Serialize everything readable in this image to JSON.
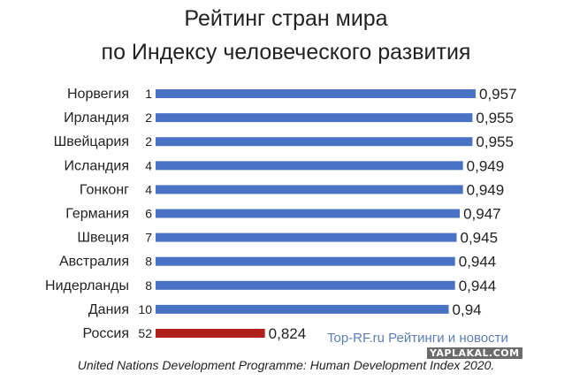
{
  "title_line1": "Рейтинг стран мира",
  "title_line2": "по Индексу человеческого развития",
  "source": "United Nations Development Programme: Human Development Index 2020.",
  "watermark": "Top-RF.ru Рейтинги и новости",
  "stamp": "YAPLAKAL.COM",
  "colors": {
    "bar": "#4a72c4",
    "highlight": "#b01e1e",
    "text": "#222222"
  },
  "chart_data": {
    "type": "bar",
    "orientation": "horizontal",
    "categories": [
      "Норвегия",
      "Ирландия",
      "Швейцария",
      "Исландия",
      "Гонконг",
      "Германия",
      "Швеция",
      "Австралия",
      "Нидерланды",
      "Дания",
      "Россия"
    ],
    "ranks": [
      "1",
      "2",
      "2",
      "4",
      "4",
      "6",
      "7",
      "8",
      "8",
      "10",
      "52"
    ],
    "values": [
      0.957,
      0.955,
      0.955,
      0.949,
      0.949,
      0.947,
      0.945,
      0.944,
      0.944,
      0.94,
      0.824
    ],
    "value_labels": [
      "0,957",
      "0,955",
      "0,955",
      "0,949",
      "0,949",
      "0,947",
      "0,945",
      "0,944",
      "0,944",
      "0,94",
      "0,824"
    ],
    "highlight_index": 10,
    "xlim": [
      0.755,
      0.957
    ]
  }
}
